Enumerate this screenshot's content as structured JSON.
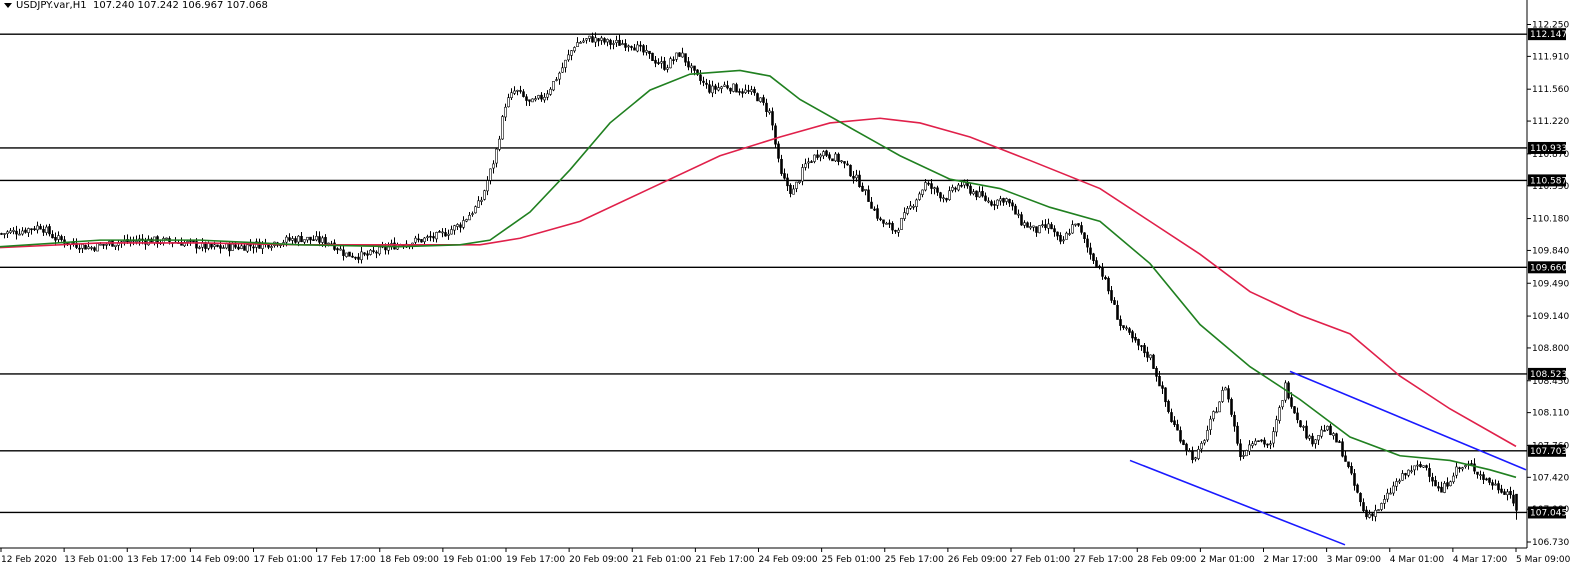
{
  "header": {
    "symbol": "USDJPY.var,H1",
    "ohlc": "107.240 107.242 106.967 107.068"
  },
  "chart_data": {
    "type": "candlestick",
    "symbol": "USDJPY.var",
    "timeframe": "H1",
    "last_bar": {
      "open": 107.24,
      "high": 107.242,
      "low": 106.967,
      "close": 107.068
    },
    "ylim": [
      106.73,
      112.25
    ],
    "y_ticks": [
      "112.250",
      "111.910",
      "111.560",
      "111.220",
      "110.870",
      "110.530",
      "110.180",
      "109.840",
      "109.490",
      "109.140",
      "108.800",
      "108.450",
      "108.110",
      "107.760",
      "107.420",
      "107.080",
      "106.730"
    ],
    "x_ticks": [
      "12 Feb 2020",
      "13 Feb 01:00",
      "13 Feb 17:00",
      "14 Feb 09:00",
      "17 Feb 01:00",
      "17 Feb 17:00",
      "18 Feb 09:00",
      "19 Feb 01:00",
      "19 Feb 17:00",
      "20 Feb 09:00",
      "21 Feb 01:00",
      "21 Feb 17:00",
      "24 Feb 09:00",
      "25 Feb 01:00",
      "25 Feb 17:00",
      "26 Feb 09:00",
      "27 Feb 01:00",
      "27 Feb 17:00",
      "28 Feb 09:00",
      "2 Mar 01:00",
      "2 Mar 17:00",
      "3 Mar 09:00",
      "4 Mar 01:00",
      "4 Mar 17:00",
      "5 Mar 09:00"
    ],
    "horizontal_levels": [
      112.147,
      110.933,
      110.587,
      109.66,
      108.523,
      107.703,
      107.045
    ],
    "close_anchors": [
      [
        0,
        110.02
      ],
      [
        20,
        110.05
      ],
      [
        40,
        110.1
      ],
      [
        55,
        109.97
      ],
      [
        70,
        109.92
      ],
      [
        90,
        109.87
      ],
      [
        110,
        109.92
      ],
      [
        140,
        109.95
      ],
      [
        180,
        109.93
      ],
      [
        210,
        109.87
      ],
      [
        240,
        109.88
      ],
      [
        270,
        109.92
      ],
      [
        300,
        109.97
      ],
      [
        330,
        109.93
      ],
      [
        345,
        109.8
      ],
      [
        365,
        109.78
      ],
      [
        395,
        109.9
      ],
      [
        420,
        109.95
      ],
      [
        440,
        110.0
      ],
      [
        460,
        110.12
      ],
      [
        480,
        110.35
      ],
      [
        495,
        110.85
      ],
      [
        505,
        111.4
      ],
      [
        515,
        111.55
      ],
      [
        530,
        111.4
      ],
      [
        545,
        111.5
      ],
      [
        560,
        111.75
      ],
      [
        575,
        112.05
      ],
      [
        590,
        112.1
      ],
      [
        610,
        112.05
      ],
      [
        630,
        112.05
      ],
      [
        650,
        111.9
      ],
      [
        665,
        111.8
      ],
      [
        680,
        111.95
      ],
      [
        695,
        111.7
      ],
      [
        710,
        111.55
      ],
      [
        725,
        111.6
      ],
      [
        740,
        111.55
      ],
      [
        755,
        111.5
      ],
      [
        770,
        111.3
      ],
      [
        780,
        110.65
      ],
      [
        792,
        110.45
      ],
      [
        805,
        110.75
      ],
      [
        820,
        110.9
      ],
      [
        840,
        110.8
      ],
      [
        860,
        110.55
      ],
      [
        880,
        110.15
      ],
      [
        895,
        110.05
      ],
      [
        910,
        110.3
      ],
      [
        925,
        110.55
      ],
      [
        945,
        110.4
      ],
      [
        960,
        110.55
      ],
      [
        975,
        110.45
      ],
      [
        990,
        110.35
      ],
      [
        1005,
        110.4
      ],
      [
        1020,
        110.15
      ],
      [
        1035,
        110.05
      ],
      [
        1050,
        110.1
      ],
      [
        1060,
        109.9
      ],
      [
        1075,
        110.15
      ],
      [
        1090,
        109.8
      ],
      [
        1100,
        109.65
      ],
      [
        1110,
        109.35
      ],
      [
        1120,
        109.05
      ],
      [
        1135,
        108.85
      ],
      [
        1150,
        108.7
      ],
      [
        1160,
        108.4
      ],
      [
        1170,
        108.05
      ],
      [
        1185,
        107.75
      ],
      [
        1195,
        107.6
      ],
      [
        1210,
        108.0
      ],
      [
        1225,
        108.4
      ],
      [
        1240,
        107.65
      ],
      [
        1255,
        107.85
      ],
      [
        1270,
        107.75
      ],
      [
        1285,
        108.4
      ],
      [
        1295,
        108.1
      ],
      [
        1310,
        107.8
      ],
      [
        1325,
        107.95
      ],
      [
        1340,
        107.75
      ],
      [
        1355,
        107.3
      ],
      [
        1365,
        107.0
      ],
      [
        1380,
        107.1
      ],
      [
        1395,
        107.35
      ],
      [
        1410,
        107.5
      ],
      [
        1425,
        107.55
      ],
      [
        1440,
        107.25
      ],
      [
        1455,
        107.5
      ],
      [
        1470,
        107.55
      ],
      [
        1485,
        107.4
      ],
      [
        1500,
        107.3
      ],
      [
        1510,
        107.25
      ],
      [
        1516,
        107.07
      ]
    ],
    "green_ma": [
      [
        0,
        109.88
      ],
      [
        100,
        109.95
      ],
      [
        200,
        109.95
      ],
      [
        300,
        109.9
      ],
      [
        400,
        109.88
      ],
      [
        460,
        109.9
      ],
      [
        490,
        109.95
      ],
      [
        530,
        110.25
      ],
      [
        570,
        110.7
      ],
      [
        610,
        111.2
      ],
      [
        650,
        111.55
      ],
      [
        690,
        111.72
      ],
      [
        740,
        111.76
      ],
      [
        770,
        111.7
      ],
      [
        800,
        111.45
      ],
      [
        850,
        111.15
      ],
      [
        900,
        110.85
      ],
      [
        950,
        110.6
      ],
      [
        1000,
        110.5
      ],
      [
        1050,
        110.3
      ],
      [
        1100,
        110.15
      ],
      [
        1150,
        109.7
      ],
      [
        1200,
        109.05
      ],
      [
        1250,
        108.6
      ],
      [
        1300,
        108.25
      ],
      [
        1350,
        107.85
      ],
      [
        1400,
        107.65
      ],
      [
        1450,
        107.6
      ],
      [
        1490,
        107.5
      ],
      [
        1516,
        107.42
      ]
    ],
    "red_ma": [
      [
        0,
        109.87
      ],
      [
        100,
        109.92
      ],
      [
        200,
        109.92
      ],
      [
        300,
        109.9
      ],
      [
        400,
        109.9
      ],
      [
        480,
        109.9
      ],
      [
        520,
        109.97
      ],
      [
        580,
        110.15
      ],
      [
        650,
        110.5
      ],
      [
        720,
        110.85
      ],
      [
        780,
        111.05
      ],
      [
        830,
        111.2
      ],
      [
        880,
        111.25
      ],
      [
        920,
        111.2
      ],
      [
        970,
        111.05
      ],
      [
        1030,
        110.8
      ],
      [
        1100,
        110.5
      ],
      [
        1150,
        110.15
      ],
      [
        1200,
        109.8
      ],
      [
        1250,
        109.4
      ],
      [
        1300,
        109.15
      ],
      [
        1350,
        108.95
      ],
      [
        1400,
        108.5
      ],
      [
        1450,
        108.15
      ],
      [
        1516,
        107.75
      ]
    ],
    "trend_channel_upper": [
      [
        1290,
        108.55
      ],
      [
        1526,
        107.5
      ]
    ],
    "trend_channel_lower": [
      [
        1130,
        107.6
      ],
      [
        1345,
        106.7
      ]
    ]
  }
}
